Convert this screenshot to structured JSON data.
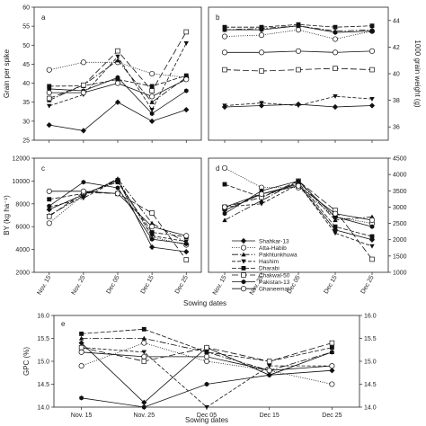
{
  "chart_data": {
    "type": "line",
    "x": [
      "Nov. 15",
      "Nov. 25",
      "Dec 05",
      "Dec 15",
      "Dec 25"
    ],
    "xlabel": "Sowing dates",
    "legend_position": "inside-panel-d-lower-right",
    "series_styles": [
      {
        "name": "Shahkar-13",
        "dash": "none",
        "marker": "diamond-filled"
      },
      {
        "name": "Atta-Habib",
        "dash": "1,1.5",
        "marker": "circle-open"
      },
      {
        "name": "Pakhtunkhuwa",
        "dash": "7,2,1.5,2",
        "marker": "triangle-filled"
      },
      {
        "name": "Hashim",
        "dash": "4,2",
        "marker": "triangle-down-filled"
      },
      {
        "name": "Dharabi",
        "dash": "5,2",
        "marker": "square-filled"
      },
      {
        "name": "Chakwal-50",
        "dash": "7,3",
        "marker": "square-open"
      },
      {
        "name": "Pakistan-13",
        "dash": "none",
        "marker": "hexagon-filled"
      },
      {
        "name": "Ghaneemat",
        "dash": "none",
        "marker": "circle-open"
      }
    ],
    "panels": [
      {
        "letter": "a",
        "ylabel": "Grain per spike",
        "ylim": [
          25,
          60
        ],
        "yticks": [
          25,
          30,
          35,
          40,
          45,
          50,
          55,
          60
        ],
        "y_side": "left",
        "x_tick_labels": false,
        "series": [
          {
            "name": "Shahkar-13",
            "values": [
              29,
              27.5,
              35,
              30,
              33
            ]
          },
          {
            "name": "Atta-Habib",
            "values": [
              43.5,
              45.5,
              45.5,
              42.5,
              41.5
            ]
          },
          {
            "name": "Pakhtunkhuwa",
            "values": [
              35.5,
              39.5,
              46,
              35,
              41.5
            ]
          },
          {
            "name": "Hashim",
            "values": [
              34,
              37,
              47,
              33,
              50.5
            ]
          },
          {
            "name": "Dharabi",
            "values": [
              39.2,
              39.3,
              41,
              39.2,
              42
            ]
          },
          {
            "name": "Chakwal-50",
            "values": [
              36,
              39.5,
              48.5,
              38,
              53.5
            ]
          },
          {
            "name": "Pakistan-13",
            "values": [
              38.5,
              38,
              41.5,
              32,
              38
            ]
          },
          {
            "name": "Ghaneemat",
            "values": [
              37.5,
              37.5,
              40,
              36.5,
              41
            ]
          }
        ]
      },
      {
        "letter": "b",
        "ylabel": "1000 grain weight (g)",
        "ylim": [
          35,
          45
        ],
        "yticks": [
          36,
          38,
          40,
          42,
          44
        ],
        "y_side": "right",
        "x_tick_labels": false,
        "series": [
          {
            "name": "Shahkar-13",
            "values": [
              37.5,
              37.6,
              37.7,
              37.5,
              37.6
            ]
          },
          {
            "name": "Atta-Habib",
            "values": [
              42.8,
              42.9,
              43.3,
              42.6,
              43.2
            ]
          },
          {
            "name": "Pakhtunkhuwa",
            "values": [
              43.3,
              43.4,
              43.6,
              43.2,
              43.3
            ]
          },
          {
            "name": "Hashim",
            "values": [
              37.6,
              37.8,
              37.6,
              38.3,
              38.1
            ]
          },
          {
            "name": "Dharabi",
            "values": [
              43.5,
              43.5,
              43.7,
              43.5,
              43.6
            ]
          },
          {
            "name": "Chakwal-50",
            "values": [
              40.3,
              40.2,
              40.3,
              40.4,
              40.3
            ]
          },
          {
            "name": "Pakistan-13",
            "values": [
              43.3,
              43.3,
              43.6,
              43.1,
              43.2
            ]
          },
          {
            "name": "Ghaneemat",
            "values": [
              41.6,
              41.6,
              41.7,
              41.6,
              41.7
            ]
          }
        ]
      },
      {
        "letter": "c",
        "ylabel": "BY (kg ha⁻¹)",
        "ylim": [
          2000,
          12000
        ],
        "yticks": [
          2000,
          4000,
          6000,
          8000,
          10000,
          12000
        ],
        "y_side": "left",
        "x_tick_labels": true,
        "series": [
          {
            "name": "Shahkar-13",
            "values": [
              7500,
              8800,
              10100,
              4200,
              3800
            ]
          },
          {
            "name": "Atta-Habib",
            "values": [
              6300,
              8800,
              10000,
              5100,
              4400
            ]
          },
          {
            "name": "Pakhtunkhuwa",
            "values": [
              7000,
              8700,
              10200,
              6300,
              4600
            ]
          },
          {
            "name": "Hashim",
            "values": [
              7700,
              8500,
              10100,
              5200,
              4700
            ]
          },
          {
            "name": "Dharabi",
            "values": [
              8400,
              8900,
              9900,
              5500,
              5100
            ]
          },
          {
            "name": "Chakwal-50",
            "values": [
              6900,
              9000,
              8900,
              7200,
              3100
            ]
          },
          {
            "name": "Pakistan-13",
            "values": [
              7800,
              9900,
              9400,
              4900,
              4500
            ]
          },
          {
            "name": "Ghaneemat",
            "values": [
              9100,
              9100,
              8900,
              6000,
              5200
            ]
          }
        ]
      },
      {
        "letter": "d",
        "ylabel": "",
        "ylim": [
          1000,
          4500
        ],
        "yticks": [
          1000,
          1500,
          2000,
          2500,
          3000,
          3500,
          4000,
          4500
        ],
        "y_side": "right",
        "x_tick_labels": true,
        "series": [
          {
            "name": "Shahkar-13",
            "values": [
              2900,
              3400,
              3700,
              2300,
              2000
            ]
          },
          {
            "name": "Atta-Habib",
            "values": [
              4200,
              3600,
              3600,
              2700,
              2500
            ]
          },
          {
            "name": "Pakhtunkhuwa",
            "values": [
              2600,
              3200,
              3800,
              2600,
              2700
            ]
          },
          {
            "name": "Hashim",
            "values": [
              3000,
              3100,
              3700,
              2200,
              1800
            ]
          },
          {
            "name": "Dharabi",
            "values": [
              3700,
              3300,
              3750,
              2400,
              2100
            ]
          },
          {
            "name": "Chakwal-50",
            "values": [
              3000,
              3300,
              3800,
              2900,
              1400
            ]
          },
          {
            "name": "Pakistan-13",
            "values": [
              2800,
              3500,
              3800,
              2700,
              2400
            ]
          },
          {
            "name": "Ghaneemat",
            "values": [
              3000,
              3400,
              3650,
              2800,
              2600
            ]
          }
        ]
      },
      {
        "letter": "e",
        "ylabel": "GPC (%)",
        "ylim": [
          14.0,
          16.0
        ],
        "yticks": [
          14.0,
          14.5,
          15.0,
          15.5,
          16.0
        ],
        "y_side": "both",
        "x_tick_labels": true,
        "series": [
          {
            "name": "Shahkar-13",
            "values": [
              15.4,
              14.1,
              15.3,
              14.7,
              14.8
            ]
          },
          {
            "name": "Atta-Habib",
            "values": [
              14.9,
              15.4,
              15.0,
              14.8,
              14.5
            ]
          },
          {
            "name": "Pakhtunkhuwa",
            "values": [
              15.5,
              15.5,
              15.2,
              14.8,
              15.2
            ]
          },
          {
            "name": "Hashim",
            "values": [
              15.3,
              15.2,
              14.0,
              14.9,
              14.9
            ]
          },
          {
            "name": "Dharabi",
            "values": [
              15.6,
              15.7,
              15.2,
              15.0,
              15.3
            ]
          },
          {
            "name": "Chakwal-50",
            "values": [
              15.3,
              15.0,
              15.3,
              15.0,
              15.4
            ]
          },
          {
            "name": "Pakistan-13",
            "values": [
              14.2,
              14.0,
              14.5,
              14.7,
              15.2
            ]
          },
          {
            "name": "Ghaneemat",
            "values": [
              15.2,
              15.1,
              15.1,
              14.8,
              14.9
            ]
          }
        ]
      }
    ]
  }
}
